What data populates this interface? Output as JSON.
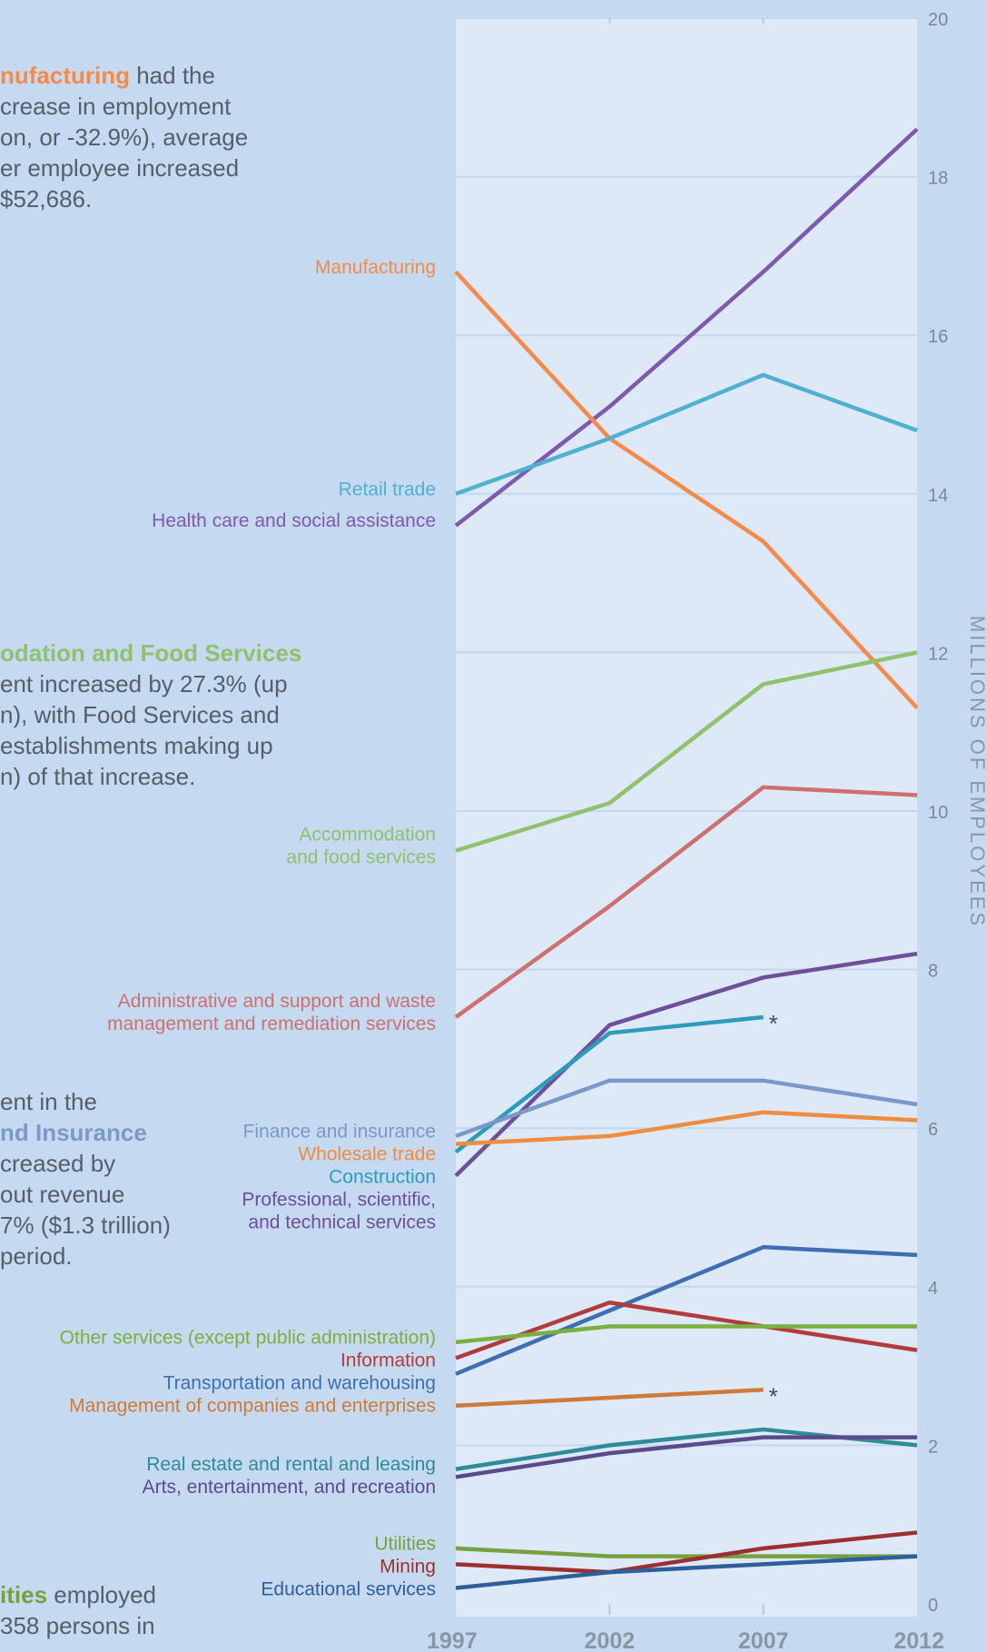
{
  "chart_data": {
    "type": "line",
    "title": "",
    "x": [
      1997,
      2002,
      2007,
      2012
    ],
    "ylabel": "MILLIONS OF EMPLOYEES",
    "ylim": [
      0,
      20
    ],
    "yticks": [
      0,
      2,
      4,
      6,
      8,
      10,
      12,
      14,
      16,
      18,
      20
    ],
    "grid": true,
    "series": [
      {
        "name": "Health care and social assistance",
        "color": "#7e5aae",
        "values": [
          13.6,
          15.1,
          16.8,
          18.6
        ]
      },
      {
        "name": "Manufacturing",
        "color": "#f58a4b",
        "values": [
          16.8,
          14.7,
          13.4,
          11.3
        ]
      },
      {
        "name": "Retail trade",
        "color": "#4fb0d0",
        "values": [
          14.0,
          14.7,
          15.5,
          14.8
        ]
      },
      {
        "name": "Accommodation and food services",
        "color": "#8fc16f",
        "values": [
          9.5,
          10.1,
          11.6,
          12.0
        ]
      },
      {
        "name": "Administrative and support and waste management and remediation services",
        "color": "#cc7070",
        "values": [
          7.4,
          8.8,
          10.3,
          10.2
        ]
      },
      {
        "name": "Professional, scientific, and technical services",
        "color": "#6e4f99",
        "values": [
          5.4,
          7.3,
          7.9,
          8.2
        ]
      },
      {
        "name": "Construction",
        "color": "#2d9bbb",
        "values": [
          5.7,
          7.2,
          7.4,
          null
        ]
      },
      {
        "name": "Finance and insurance",
        "color": "#7b98c9",
        "values": [
          5.9,
          6.6,
          6.6,
          6.3
        ]
      },
      {
        "name": "Wholesale trade",
        "color": "#ef8c3e",
        "values": [
          5.8,
          5.9,
          6.2,
          6.1
        ]
      },
      {
        "name": "Transportation and warehousing",
        "color": "#3f6fb2",
        "values": [
          2.9,
          3.7,
          4.5,
          4.4
        ]
      },
      {
        "name": "Information",
        "color": "#b23c3c",
        "values": [
          3.1,
          3.8,
          3.5,
          3.2
        ]
      },
      {
        "name": "Other services (except public administration)",
        "color": "#7ab03f",
        "values": [
          3.3,
          3.5,
          3.5,
          3.5
        ]
      },
      {
        "name": "Management of companies and enterprises",
        "color": "#cf7a36",
        "values": [
          2.5,
          2.6,
          2.7,
          null
        ]
      },
      {
        "name": "Real estate and rental and leasing",
        "color": "#2e8c96",
        "values": [
          1.7,
          2.0,
          2.2,
          2.0
        ]
      },
      {
        "name": "Arts, entertainment, and recreation",
        "color": "#5b4a8a",
        "values": [
          1.6,
          1.9,
          2.1,
          2.1
        ]
      },
      {
        "name": "Utilities",
        "color": "#77a140",
        "values": [
          0.7,
          0.6,
          0.6,
          0.6
        ]
      },
      {
        "name": "Mining",
        "color": "#9e2f2f",
        "values": [
          0.5,
          0.4,
          0.7,
          0.9
        ]
      },
      {
        "name": "Educational services",
        "color": "#2e5f9a",
        "values": [
          0.2,
          0.4,
          0.5,
          0.6
        ]
      }
    ],
    "series_labels": [
      {
        "series": "Manufacturing",
        "lines": [
          "Manufacturing"
        ]
      },
      {
        "series": "Retail trade",
        "lines": [
          "Retail trade"
        ]
      },
      {
        "series": "Health care and social assistance",
        "lines": [
          "Health care and social assistance"
        ]
      },
      {
        "series": "Accommodation and food services",
        "lines": [
          "Accommodation",
          "and food services"
        ]
      },
      {
        "series": "Administrative and support and waste management and remediation services",
        "lines": [
          "Administrative and support and waste",
          "management and remediation services"
        ]
      },
      {
        "series": "Finance and insurance",
        "lines": [
          "Finance and insurance"
        ]
      },
      {
        "series": "Wholesale trade",
        "lines": [
          "Wholesale trade"
        ]
      },
      {
        "series": "Construction",
        "lines": [
          "Construction"
        ]
      },
      {
        "series": "Professional, scientific, and technical services",
        "lines": [
          "Professional, scientific,",
          "and technical services"
        ]
      },
      {
        "series": "Other services (except public administration)",
        "lines": [
          "Other services (except public administration)"
        ]
      },
      {
        "series": "Information",
        "lines": [
          "Information"
        ]
      },
      {
        "series": "Transportation and warehousing",
        "lines": [
          "Transportation and warehousing"
        ]
      },
      {
        "series": "Management of companies and enterprises",
        "lines": [
          "Management of companies and enterprises"
        ]
      },
      {
        "series": "Real estate and rental and leasing",
        "lines": [
          "Real estate and rental and leasing"
        ]
      },
      {
        "series": "Arts, entertainment, and recreation",
        "lines": [
          "Arts, entertainment, and recreation"
        ]
      },
      {
        "series": "Utilities",
        "lines": [
          "Utilities"
        ]
      },
      {
        "series": "Mining",
        "lines": [
          "Mining"
        ]
      },
      {
        "series": "Educational services",
        "lines": [
          "Educational services"
        ]
      }
    ],
    "end_markers": [
      {
        "series": "Construction",
        "text": "*"
      },
      {
        "series": "Management of companies and enterprises",
        "text": "*"
      }
    ]
  },
  "annotations": [
    {
      "highlight": "nufacturing",
      "highlight_color": "#f58a4b",
      "after_highlight": " had the",
      "lines": [
        "crease in employment",
        "on, or -32.9%), average",
        "er employee increased",
        " $52,686."
      ]
    },
    {
      "highlight": "odation and Food Services",
      "highlight_color": "#8fc16f",
      "after_highlight": "",
      "lines": [
        "ent increased by 27.3% (up",
        "n), with Food Services and",
        "establishments making up",
        "n) of that increase."
      ]
    },
    {
      "pre_lines": [
        "ent in the"
      ],
      "highlight": "nd Insurance",
      "highlight_color": "#7b98c9",
      "after_highlight": "",
      "lines": [
        "creased by",
        "out revenue",
        "7% ($1.3 trillion)",
        " period."
      ]
    },
    {
      "highlight": "ities",
      "highlight_color": "#77a140",
      "after_highlight": " employed",
      "lines": [
        "358 persons in"
      ]
    }
  ]
}
